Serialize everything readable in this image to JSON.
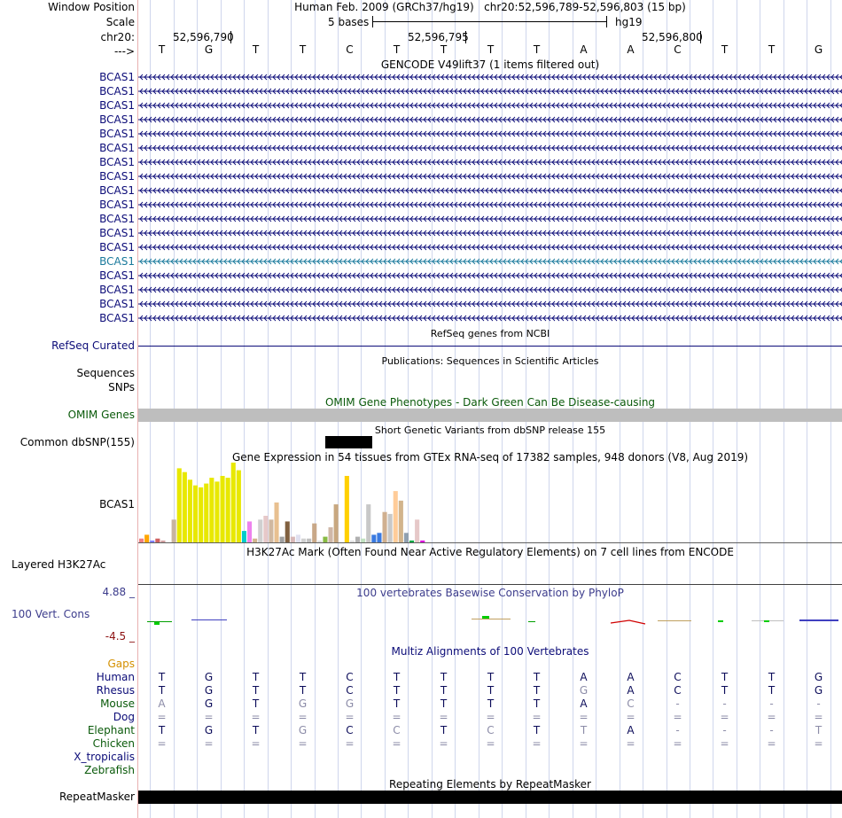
{
  "header": {
    "window_position_label": "Window Position",
    "scale_label": "Scale",
    "chrom_label": "chr20:",
    "strand_label": "--->",
    "assembly": "Human Feb. 2009 (GRCh37/hg19)",
    "position": "chr20:52,596,789-52,596,803 (15 bp)",
    "scale_text": "5 bases",
    "db": "hg19",
    "ruler_ticks": [
      "52,596,790",
      "52,596,795",
      "52,596,800"
    ]
  },
  "bases": [
    "T",
    "G",
    "T",
    "T",
    "C",
    "T",
    "T",
    "T",
    "T",
    "A",
    "A",
    "C",
    "T",
    "T",
    "G"
  ],
  "gencode": {
    "title": "GENCODE V49lift37 (1 items filtered out)",
    "gene": "BCAS1",
    "count": 18,
    "highlight_index": 13,
    "colors": {
      "normal": "#0c0c78",
      "highlight": "#1a7a9c"
    }
  },
  "refseq": {
    "label": "RefSeq Curated",
    "title": "RefSeq genes from NCBI"
  },
  "publications": {
    "title": "Publications: Sequences in Scientific Articles",
    "label1": "Sequences",
    "label2": "SNPs"
  },
  "omim": {
    "title": "OMIM Gene Phenotypes - Dark Green Can Be Disease-causing",
    "label": "OMIM Genes",
    "bar_color": "#bebebe"
  },
  "dbsnp": {
    "label": "Common dbSNP(155)",
    "title": "Short Genetic Variants from dbSNP release 155"
  },
  "gtex": {
    "title": "Gene Expression in 54 tissues from GTEx RNA-seq of 17382 samples, 948 donors (V8, Aug 2019)",
    "label": "BCAS1",
    "values": [
      2,
      4,
      1,
      2,
      1,
      0,
      12,
      39,
      37,
      33,
      30,
      29,
      31,
      34,
      32,
      35,
      34,
      42,
      38,
      6,
      11,
      2,
      12,
      14,
      12,
      21,
      3,
      11,
      3,
      4,
      2,
      2,
      10,
      1,
      3,
      8,
      20,
      0,
      35,
      1,
      3,
      2,
      20,
      4,
      5,
      16,
      15,
      27,
      22,
      5,
      1,
      12,
      1,
      2
    ],
    "colors": [
      "#f08080",
      "#ffa500",
      "#8080ff",
      "#d06060",
      "#d0a0a0",
      "#ffffff",
      "#c8b4a0",
      "#e8e800",
      "#e8e800",
      "#e8e800",
      "#e8e800",
      "#e8e800",
      "#e8e800",
      "#e8e800",
      "#e8e800",
      "#e8e800",
      "#e8e800",
      "#e8e800",
      "#e8e800",
      "#00cccc",
      "#ee82ee",
      "#d2b48c",
      "#d0d0d0",
      "#e6c8c8",
      "#d0b8a0",
      "#e8c090",
      "#a0a0a0",
      "#806040",
      "#d8b8b8",
      "#e0e0f0",
      "#d0d0d0",
      "#c0c0c0",
      "#c8a888",
      "#e0e0e0",
      "#88bb44",
      "#d0b8a8",
      "#c8a880",
      "#ffffff",
      "#ffd000",
      "#e0e0e0",
      "#b0b0b0",
      "#c0e0c0",
      "#c8c8c8",
      "#3a7ae0",
      "#3a7ae0",
      "#d0b090",
      "#c8c8c8",
      "#ffcc99",
      "#d2b48c",
      "#90a0b0",
      "#00aa44",
      "#e6c8c8",
      "#dd00dd",
      "#ffffff"
    ]
  },
  "h3k27ac": {
    "label": "Layered H3K27Ac",
    "title": "H3K27Ac Mark (Often Found Near Active Regulatory Elements) on 7 cell lines from ENCODE"
  },
  "phylop": {
    "title": "100 vertebrates Basewise Conservation by PhyloP",
    "label": "100 Vert. Cons",
    "max": "4.88 _",
    "min": "-4.5 _"
  },
  "multiz": {
    "title": "Multiz Alignments of 100 Vertebrates",
    "gaps_label": "Gaps",
    "species": [
      {
        "name": "Human",
        "color": "#0c0c78",
        "bases": [
          "T",
          "G",
          "T",
          "T",
          "C",
          "T",
          "T",
          "T",
          "T",
          "A",
          "A",
          "C",
          "T",
          "T",
          "G"
        ],
        "faint": []
      },
      {
        "name": "Rhesus",
        "color": "#0c0c78",
        "bases": [
          "T",
          "G",
          "T",
          "T",
          "C",
          "T",
          "T",
          "T",
          "T",
          "G",
          "A",
          "C",
          "T",
          "T",
          "G"
        ],
        "faint": [
          9
        ]
      },
      {
        "name": "Mouse",
        "color": "#0a5a0a",
        "bases": [
          "A",
          "G",
          "T",
          "G",
          "G",
          "T",
          "T",
          "T",
          "T",
          "A",
          "C",
          "-",
          "-",
          "-",
          "-"
        ],
        "faint": [
          0,
          3,
          4,
          10,
          11,
          12,
          13,
          14
        ]
      },
      {
        "name": "Dog",
        "color": "#0c0c78",
        "bases": [
          "=",
          "=",
          "=",
          "=",
          "=",
          "=",
          "=",
          "=",
          "=",
          "=",
          "=",
          "=",
          "=",
          "=",
          "="
        ],
        "faint": [
          0,
          1,
          2,
          3,
          4,
          5,
          6,
          7,
          8,
          9,
          10,
          11,
          12,
          13,
          14
        ]
      },
      {
        "name": "Elephant",
        "color": "#0a5a0a",
        "bases": [
          "T",
          "G",
          "T",
          "G",
          "C",
          "C",
          "T",
          "C",
          "T",
          "T",
          "A",
          "-",
          "-",
          "-",
          "T"
        ],
        "faint": [
          3,
          5,
          7,
          9,
          11,
          12,
          13,
          14
        ]
      },
      {
        "name": "Chicken",
        "color": "#0a5a0a",
        "bases": [
          "=",
          "=",
          "=",
          "=",
          "=",
          "=",
          "=",
          "=",
          "=",
          "=",
          "=",
          "=",
          "=",
          "=",
          "="
        ],
        "faint": [
          0,
          1,
          2,
          3,
          4,
          5,
          6,
          7,
          8,
          9,
          10,
          11,
          12,
          13,
          14
        ]
      },
      {
        "name": "X_tropicalis",
        "color": "#0c0c78",
        "bases": [],
        "faint": []
      },
      {
        "name": "Zebrafish",
        "color": "#0a5a0a",
        "bases": [],
        "faint": []
      }
    ]
  },
  "repeatmasker": {
    "label": "RepeatMasker",
    "title": "Repeating Elements by RepeatMasker"
  }
}
